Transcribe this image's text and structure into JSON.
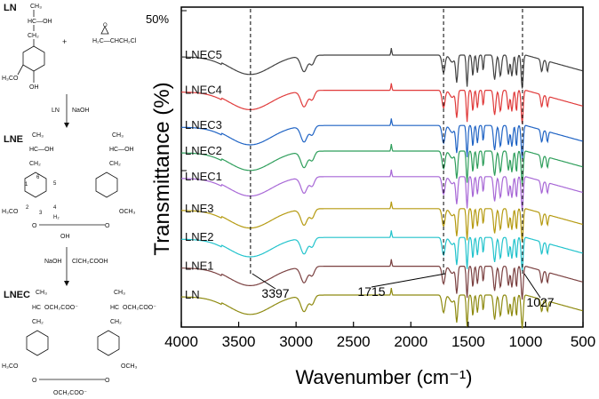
{
  "scheme": {
    "ln_label": "LN",
    "lne_label": "LNE",
    "lnec_label": "LNEC",
    "plus": "+",
    "epichlorohydrin": "H₂C—CHCH₂Cl",
    "step1_left": "LN",
    "step1_right": "NaOH",
    "step2_left": "NaOH",
    "step2_right": "ClCH₂COOH",
    "sidechain_ln": "CH₃",
    "sidechain_ln_mid": "HC—OH",
    "ch2": "CH₂",
    "methoxy": "H₃CO",
    "methoxy_r": "OCH₃",
    "oh": "OH",
    "h2": "H₂",
    "o": "O",
    "ring_nums": [
      "1",
      "6",
      "5",
      "2",
      "3",
      "4"
    ],
    "carboxy": "OCH₂COO⁻",
    "hc": "HC",
    "carboxy_bottom": "OCH₂COO⁻"
  },
  "chart_data": {
    "type": "line",
    "title": "",
    "xlabel": "Wavenumber (cm⁻¹)",
    "ylabel": "Transmittance (%)",
    "xlim": [
      4000,
      500
    ],
    "x_ticks": [
      "4000",
      "3500",
      "3000",
      "2500",
      "2000",
      "1500",
      "1000",
      "500"
    ],
    "scale_bar_label": "50%",
    "ylim_display": [
      0,
      100
    ],
    "series": [
      {
        "name": "LNEC5",
        "color": "#404040",
        "offset": 85
      },
      {
        "name": "LNEC4",
        "color": "#e03a3a",
        "offset": 74
      },
      {
        "name": "LNEC3",
        "color": "#1f63c4",
        "offset": 63
      },
      {
        "name": "LNEC2",
        "color": "#2e9e5b",
        "offset": 55
      },
      {
        "name": "LNEC1",
        "color": "#a767d6",
        "offset": 47
      },
      {
        "name": "LNE3",
        "color": "#b59a10",
        "offset": 37
      },
      {
        "name": "LNE2",
        "color": "#22c3cc",
        "offset": 28
      },
      {
        "name": "LNE1",
        "color": "#7a4040",
        "offset": 19
      },
      {
        "name": "LN",
        "color": "#8e8a10",
        "offset": 10
      }
    ],
    "annotations": [
      {
        "label": "3397",
        "x": 3397
      },
      {
        "label": "1715",
        "x": 1715
      },
      {
        "label": "1027",
        "x": 1027
      }
    ]
  }
}
